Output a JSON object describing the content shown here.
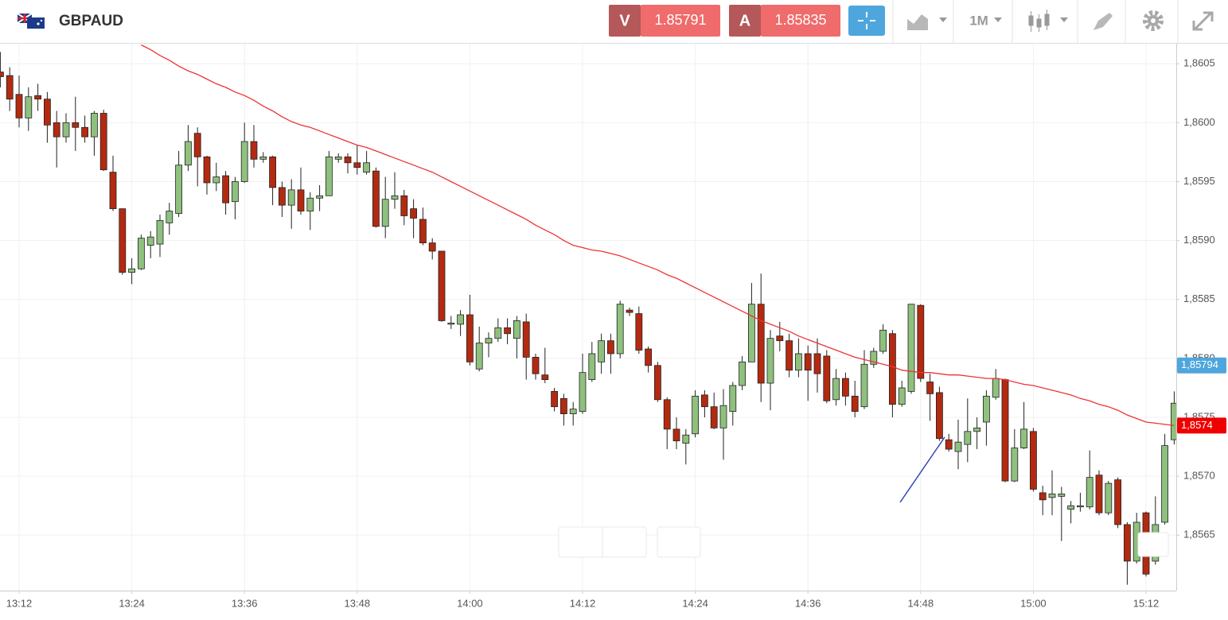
{
  "header": {
    "sell_label": "V",
    "sell_price": "1.85791",
    "buy_label": "A",
    "buy_price": "1.85835",
    "timeframe": "1M"
  },
  "chart_data": {
    "type": "candlestick",
    "title": "GBPAUD",
    "categories": [
      null,
      null,
      "13:12",
      null,
      null,
      null,
      null,
      null,
      null,
      null,
      null,
      null,
      null,
      null,
      "13:24",
      null,
      null,
      null,
      null,
      null,
      null,
      null,
      null,
      null,
      null,
      null,
      "13:36",
      null,
      null,
      null,
      null,
      null,
      null,
      null,
      null,
      null,
      null,
      null,
      "13:48",
      null,
      null,
      null,
      null,
      null,
      null,
      null,
      null,
      null,
      null,
      null,
      "14:00",
      null,
      null,
      null,
      null,
      null,
      null,
      null,
      null,
      null,
      null,
      null,
      "14:12",
      null,
      null,
      null,
      null,
      null,
      null,
      null,
      null,
      null,
      null,
      null,
      "14:24",
      null,
      null,
      null,
      null,
      null,
      null,
      null,
      null,
      null,
      null,
      null,
      "14:36",
      null,
      null,
      null,
      null,
      null,
      null,
      null,
      null,
      null,
      null,
      null,
      "14:48",
      null,
      null,
      null,
      null,
      null,
      null,
      null,
      null,
      null,
      null,
      null,
      "15:00",
      null,
      null,
      null,
      null,
      null,
      null,
      null,
      null,
      null,
      null,
      null,
      "15:12",
      null,
      null,
      null
    ],
    "open": [
      1.86043,
      1.8604,
      1.86024,
      1.86004,
      1.86023,
      1.8602,
      1.86,
      1.85988,
      1.86,
      1.85996,
      1.85988,
      1.86008,
      1.85958,
      1.85927,
      1.85873,
      1.85876,
      1.85896,
      1.85897,
      1.85915,
      1.85923,
      1.85964,
      1.85991,
      1.85971,
      1.85949,
      1.85955,
      1.85933,
      1.8595,
      1.85984,
      1.85969,
      1.85971,
      1.85945,
      1.8593,
      1.85943,
      1.85925,
      1.85936,
      1.85938,
      1.85969,
      1.85971,
      1.85966,
      1.85958,
      1.85959,
      1.85912,
      1.85935,
      1.85938,
      1.85927,
      1.85918,
      1.85898,
      1.85891,
      1.85829,
      1.85829,
      1.85837,
      1.85791,
      1.85813,
      1.85817,
      1.85826,
      1.85817,
      1.85831,
      1.85801,
      1.85786,
      1.85772,
      1.85766,
      1.85753,
      1.85755,
      1.85782,
      1.85797,
      1.85815,
      1.85804,
      1.85841,
      1.85838,
      1.85808,
      1.85794,
      1.85765,
      1.8574,
      1.85728,
      1.85736,
      1.85769,
      1.85759,
      1.85741,
      1.85755,
      1.85777,
      1.85797,
      1.85846,
      1.85779,
      1.85819,
      1.85815,
      1.8579,
      1.85804,
      1.85804,
      1.85802,
      1.85765,
      1.85783,
      1.85768,
      1.85759,
      1.85795,
      1.85806,
      1.85821,
      1.85761,
      1.85772,
      1.85845,
      1.8578,
      1.85771,
      1.85731,
      1.85721,
      1.85727,
      1.85738,
      1.85746,
      1.85767,
      1.85782,
      1.85696,
      1.85724,
      1.85738,
      1.85686,
      1.85682,
      1.85683,
      1.85672,
      1.85674,
      1.85674,
      1.85701,
      1.85669,
      1.85697,
      1.85659,
      1.85628,
      1.85669,
      1.85628,
      1.85661,
      1.85731
    ],
    "high": [
      1.8606,
      1.86047,
      1.8604,
      1.8603,
      1.86033,
      1.86026,
      1.8601,
      1.86008,
      1.86022,
      1.86006,
      1.8601,
      1.86011,
      1.85972,
      1.85927,
      1.85885,
      1.85905,
      1.85908,
      1.85922,
      1.85932,
      1.85976,
      1.85998,
      1.85996,
      1.85972,
      1.85966,
      1.85959,
      1.85954,
      1.86,
      1.85998,
      1.85975,
      1.85972,
      1.8595,
      1.85952,
      1.85962,
      1.85941,
      1.85947,
      1.85976,
      1.85974,
      1.85974,
      1.85981,
      1.85976,
      1.85962,
      1.85954,
      1.85958,
      1.85943,
      1.85935,
      1.85928,
      1.85902,
      1.85891,
      1.85836,
      1.85841,
      1.85854,
      1.85827,
      1.85822,
      1.85834,
      1.85834,
      1.85836,
      1.85838,
      1.85804,
      1.85809,
      1.85775,
      1.8577,
      1.85763,
      1.85804,
      1.85814,
      1.85821,
      1.85821,
      1.85849,
      1.85843,
      1.85844,
      1.8581,
      1.85797,
      1.85767,
      1.8575,
      1.8574,
      1.85773,
      1.85773,
      1.85771,
      1.85774,
      1.8578,
      1.85802,
      1.85864,
      1.85872,
      1.85824,
      1.85831,
      1.85821,
      1.85817,
      1.85811,
      1.85817,
      1.85807,
      1.85791,
      1.85788,
      1.85781,
      1.85807,
      1.85809,
      1.85829,
      1.85824,
      1.85781,
      1.85846,
      1.85846,
      1.85787,
      1.85776,
      1.85736,
      1.85748,
      1.85766,
      1.8575,
      1.85773,
      1.85791,
      1.85783,
      1.8574,
      1.85763,
      1.85741,
      1.85692,
      1.85705,
      1.85691,
      1.85679,
      1.85686,
      1.85722,
      1.85705,
      1.85696,
      1.85699,
      1.85661,
      1.85669,
      1.8567,
      1.85683,
      1.85736,
      1.85772
    ],
    "low": [
      1.8603,
      1.8601,
      1.85996,
      1.85993,
      1.8601,
      1.85983,
      1.85962,
      1.85983,
      1.85976,
      1.85983,
      1.85972,
      1.85959,
      1.85925,
      1.85871,
      1.85863,
      1.85875,
      1.85885,
      1.85886,
      1.85905,
      1.8592,
      1.85959,
      1.85946,
      1.85939,
      1.85942,
      1.85922,
      1.85918,
      1.85949,
      1.85962,
      1.85966,
      1.8593,
      1.8592,
      1.8591,
      1.85922,
      1.85909,
      1.85925,
      1.85938,
      1.85966,
      1.85957,
      1.85956,
      1.85956,
      1.85911,
      1.85902,
      1.85927,
      1.85913,
      1.85902,
      1.85896,
      1.85884,
      1.85831,
      1.85825,
      1.85819,
      1.85794,
      1.85789,
      1.85801,
      1.85814,
      1.85812,
      1.858,
      1.85782,
      1.85782,
      1.85779,
      1.85755,
      1.85743,
      1.85743,
      1.85753,
      1.8578,
      1.85787,
      1.85787,
      1.858,
      1.85836,
      1.85804,
      1.85788,
      1.85763,
      1.85723,
      1.85723,
      1.8571,
      1.85733,
      1.8575,
      1.8574,
      1.85714,
      1.85743,
      1.85773,
      1.85797,
      1.85763,
      1.85756,
      1.85806,
      1.85784,
      1.85784,
      1.85764,
      1.85771,
      1.85762,
      1.8576,
      1.8576,
      1.8575,
      1.85757,
      1.85792,
      1.85804,
      1.8575,
      1.85759,
      1.8577,
      1.8578,
      1.85747,
      1.8573,
      1.85721,
      1.85706,
      1.85712,
      1.85723,
      1.85726,
      1.85765,
      1.85695,
      1.85695,
      1.85723,
      1.85687,
      1.85667,
      1.85667,
      1.85645,
      1.8566,
      1.8567,
      1.85672,
      1.85667,
      1.85667,
      1.85656,
      1.85608,
      1.85626,
      1.85615,
      1.85625,
      1.85659,
      1.85727
    ],
    "close": [
      1.86039,
      1.8602,
      1.86004,
      1.86022,
      1.8602,
      1.85998,
      1.85988,
      1.86,
      1.85996,
      1.85988,
      1.86008,
      1.8596,
      1.85927,
      1.85873,
      1.85876,
      1.85902,
      1.85903,
      1.85917,
      1.85925,
      1.85964,
      1.85984,
      1.85971,
      1.85949,
      1.85954,
      1.85932,
      1.8595,
      1.85984,
      1.85969,
      1.85971,
      1.85945,
      1.8593,
      1.85943,
      1.85925,
      1.85936,
      1.85938,
      1.85971,
      1.85971,
      1.85966,
      1.85962,
      1.85966,
      1.85912,
      1.85935,
      1.85938,
      1.85921,
      1.85919,
      1.85898,
      1.85891,
      1.85832,
      1.8583,
      1.85837,
      1.85797,
      1.85813,
      1.85817,
      1.85826,
      1.85821,
      1.85832,
      1.85801,
      1.85787,
      1.85782,
      1.85759,
      1.85753,
      1.85757,
      1.85788,
      1.85804,
      1.85815,
      1.85804,
      1.85846,
      1.85839,
      1.85807,
      1.85794,
      1.85765,
      1.8574,
      1.8573,
      1.85735,
      1.85768,
      1.85759,
      1.85741,
      1.8576,
      1.85777,
      1.85797,
      1.85846,
      1.85779,
      1.85817,
      1.85815,
      1.8579,
      1.85804,
      1.8579,
      1.85787,
      1.85764,
      1.85783,
      1.85768,
      1.85755,
      1.85795,
      1.85806,
      1.85824,
      1.85761,
      1.85775,
      1.85846,
      1.85783,
      1.8577,
      1.85732,
      1.85723,
      1.85729,
      1.85738,
      1.85741,
      1.85768,
      1.85783,
      1.85696,
      1.85724,
      1.8574,
      1.85689,
      1.8568,
      1.85685,
      1.85685,
      1.85675,
      1.85675,
      1.85699,
      1.85669,
      1.85694,
      1.85659,
      1.85628,
      1.85661,
      1.85617,
      1.85659,
      1.85726,
      1.85762
    ],
    "up_color": "#8fc07e",
    "down_color": "#b32a10",
    "ma": {
      "color": "#ee3333",
      "values": [
        null,
        null,
        null,
        null,
        null,
        null,
        null,
        null,
        null,
        null,
        null,
        null,
        null,
        null,
        null,
        1.86066,
        1.86062,
        1.86057,
        1.86053,
        1.86048,
        1.86044,
        1.86041,
        1.86037,
        1.86033,
        1.8603,
        1.86026,
        1.86023,
        1.86019,
        1.86014,
        1.8601,
        1.86005,
        1.86001,
        1.85998,
        1.85996,
        1.85993,
        1.8599,
        1.85987,
        1.85984,
        1.85981,
        1.85979,
        1.85976,
        1.85973,
        1.8597,
        1.85967,
        1.85964,
        1.85961,
        1.85958,
        1.85954,
        1.8595,
        1.85946,
        1.85942,
        1.85938,
        1.85934,
        1.8593,
        1.85926,
        1.85922,
        1.85918,
        1.85913,
        1.85909,
        1.85905,
        1.859,
        1.85896,
        1.85894,
        1.85892,
        1.85891,
        1.85889,
        1.85887,
        1.85884,
        1.85881,
        1.85878,
        1.85875,
        1.85871,
        1.85868,
        1.85864,
        1.8586,
        1.85856,
        1.85852,
        1.85848,
        1.85844,
        1.8584,
        1.85836,
        1.85832,
        1.85829,
        1.85826,
        1.85823,
        1.85819,
        1.85816,
        1.85813,
        1.8581,
        1.85807,
        1.85804,
        1.85801,
        1.85799,
        1.85797,
        1.85795,
        1.85793,
        1.8579,
        1.85789,
        1.85788,
        1.85788,
        1.85787,
        1.85786,
        1.85786,
        1.85785,
        1.85784,
        1.85783,
        1.85783,
        1.85782,
        1.8578,
        1.85778,
        1.85777,
        1.85775,
        1.85773,
        1.85771,
        1.85769,
        1.85766,
        1.85764,
        1.85761,
        1.85759,
        1.85756,
        1.85752,
        1.85749,
        1.85746,
        1.85745,
        1.85744,
        1.85743
      ]
    },
    "ylim": [
      1.85603,
      1.86067
    ],
    "yticks": [
      {
        "value": 1.8565,
        "label": "1,8565"
      },
      {
        "value": 1.857,
        "label": "1,8570"
      },
      {
        "value": 1.8575,
        "label": "1,8575"
      },
      {
        "value": 1.858,
        "label": "1,8580"
      },
      {
        "value": 1.8585,
        "label": "1,8585"
      },
      {
        "value": 1.859,
        "label": "1,8590"
      },
      {
        "value": 1.8595,
        "label": "1,8595"
      },
      {
        "value": 1.86,
        "label": "1,8600"
      },
      {
        "value": 1.8605,
        "label": "1,8605"
      }
    ],
    "price_tags": [
      {
        "value": 1.85794,
        "label": "1,85794",
        "color": "#4ea6dc"
      },
      {
        "value": 1.85743,
        "label": "1,8574",
        "color": "#ee0000"
      }
    ],
    "grid": true
  }
}
